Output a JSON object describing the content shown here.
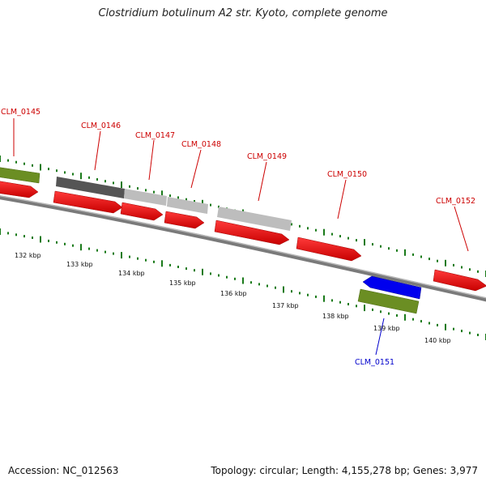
{
  "header": {
    "title": "Clostridium botulinum A2 str. Kyoto, complete genome"
  },
  "footer": {
    "accession": "Accession: NC_012563",
    "topology": "Topology: circular; Length: 4,155,278 bp; Genes: 3,977"
  },
  "colors": {
    "forward_cds": "#ff0000",
    "reverse_cds": "#0000ff",
    "gene_feature": "#6b8e23",
    "other_feature_dark": "#666666",
    "other_feature_light": "#c0c0c0",
    "ruler": "#1a7a1a",
    "backbone": "#808080",
    "forward_label": "#cc0000",
    "reverse_label": "#0000cc"
  },
  "genes": [
    {
      "id": "CLM_0145",
      "strand": "forward"
    },
    {
      "id": "CLM_0146",
      "strand": "forward"
    },
    {
      "id": "CLM_0147",
      "strand": "forward"
    },
    {
      "id": "CLM_0148",
      "strand": "forward"
    },
    {
      "id": "CLM_0149",
      "strand": "forward"
    },
    {
      "id": "CLM_0150",
      "strand": "forward"
    },
    {
      "id": "CLM_0151",
      "strand": "reverse"
    },
    {
      "id": "CLM_0152",
      "strand": "forward"
    }
  ],
  "ruler_ticks": [
    "132 kbp",
    "133 kbp",
    "134 kbp",
    "135 kbp",
    "136 kbp",
    "137 kbp",
    "138 kbp",
    "139 kbp",
    "140 kbp"
  ]
}
